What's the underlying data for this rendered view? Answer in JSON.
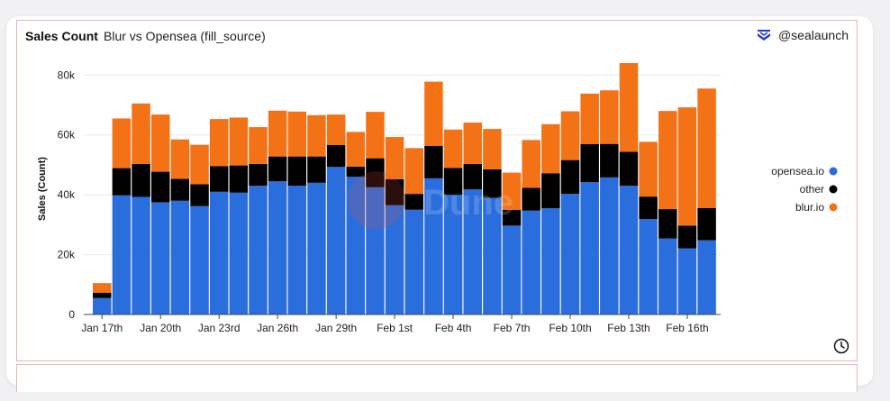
{
  "header": {
    "title": "Sales Count",
    "subtitle": "Blur vs Opensea (fill_source)",
    "brand_handle": "@sealaunch",
    "brand_icon": "sealaunch-logo-icon"
  },
  "watermark": "Dune",
  "footer": {
    "icon": "clock-icon"
  },
  "colors": {
    "opensea": "#2a6ddc",
    "other": "#000000",
    "blur": "#f47216",
    "grid": "#e8e8e8",
    "brand": "#1f3cd8"
  },
  "chart_data": {
    "type": "bar",
    "stacked": true,
    "title": "Sales Count",
    "xlabel": "",
    "ylabel": "Sales (Count)",
    "ylim": [
      0,
      84000
    ],
    "yticks": [
      0,
      20000,
      40000,
      60000,
      80000
    ],
    "ytick_labels": [
      "0",
      "20k",
      "40k",
      "60k",
      "80k"
    ],
    "categories": [
      "Jan 17",
      "Jan 18",
      "Jan 19",
      "Jan 20",
      "Jan 21",
      "Jan 22",
      "Jan 23",
      "Jan 24",
      "Jan 25",
      "Jan 26",
      "Jan 27",
      "Jan 28",
      "Jan 29",
      "Jan 30",
      "Jan 31",
      "Feb 1",
      "Feb 2",
      "Feb 3",
      "Feb 4",
      "Feb 5",
      "Feb 6",
      "Feb 7",
      "Feb 8",
      "Feb 9",
      "Feb 10",
      "Feb 11",
      "Feb 12",
      "Feb 13",
      "Feb 14",
      "Feb 15",
      "Feb 16",
      "Feb 17"
    ],
    "xtick_labels": [
      {
        "index": 0,
        "label": "Jan 17th"
      },
      {
        "index": 3,
        "label": "Jan 20th"
      },
      {
        "index": 6,
        "label": "Jan 23rd"
      },
      {
        "index": 9,
        "label": "Jan 26th"
      },
      {
        "index": 12,
        "label": "Jan 29th"
      },
      {
        "index": 15,
        "label": "Feb 1st"
      },
      {
        "index": 18,
        "label": "Feb 4th"
      },
      {
        "index": 21,
        "label": "Feb 7th"
      },
      {
        "index": 24,
        "label": "Feb 10th"
      },
      {
        "index": 27,
        "label": "Feb 13th"
      },
      {
        "index": 30,
        "label": "Feb 16th"
      }
    ],
    "series": [
      {
        "name": "opensea.io",
        "color": "#2a6ddc",
        "values": [
          5500,
          39800,
          39300,
          37500,
          38000,
          36200,
          41000,
          40700,
          43000,
          44500,
          43000,
          44000,
          49300,
          46000,
          42500,
          36500,
          35000,
          45500,
          40000,
          41800,
          39000,
          29700,
          34700,
          35500,
          40300,
          44200,
          45800,
          43000,
          31900,
          25400,
          22100,
          24800
        ]
      },
      {
        "name": "other",
        "color": "#000000",
        "values": [
          1800,
          9100,
          11000,
          10200,
          7300,
          7300,
          8600,
          9100,
          7300,
          8300,
          9800,
          8800,
          7300,
          3400,
          9700,
          8700,
          5300,
          10800,
          9000,
          8500,
          9500,
          5300,
          7600,
          11700,
          11300,
          12700,
          11200,
          11400,
          7500,
          9800,
          7600,
          10800
        ]
      },
      {
        "name": "blur.io",
        "color": "#f47216",
        "values": [
          3200,
          16600,
          20200,
          19100,
          13200,
          13200,
          15700,
          16000,
          12300,
          15300,
          15000,
          13800,
          10200,
          11600,
          15500,
          14100,
          15300,
          21500,
          12800,
          13800,
          13500,
          12400,
          16000,
          16400,
          16300,
          16900,
          17900,
          29600,
          18300,
          32800,
          39500,
          39900
        ]
      }
    ],
    "legend_position": "right",
    "grid": true
  }
}
